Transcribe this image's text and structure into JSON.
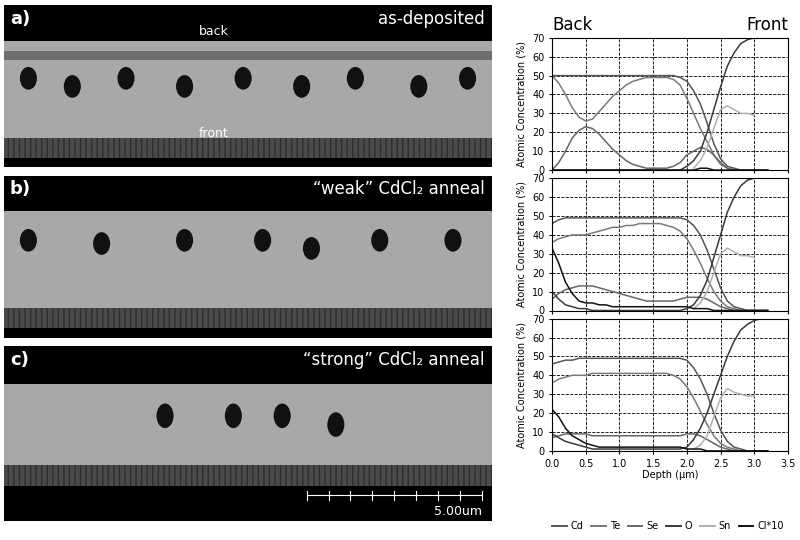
{
  "header": {
    "left": "Back",
    "right": "Front"
  },
  "images": [
    {
      "panel": "a)",
      "caption": "as-deposited",
      "top_label": "back",
      "bottom_label": "front"
    },
    {
      "panel": "b)",
      "caption": "“weak” CdCl₂ anneal"
    },
    {
      "panel": "c)",
      "caption": "“strong” CdCl₂ anneal",
      "scale_bar": "5.00um"
    }
  ],
  "chart_data": [
    {
      "type": "line",
      "ylabel": "Atomic Concentration (%)",
      "tick_labels": "y",
      "grid": true,
      "xlim": [
        0.0,
        3.5
      ],
      "xticks": [
        0.0,
        0.5,
        1.0,
        1.5,
        2.0,
        2.5,
        3.0,
        3.5
      ],
      "ylim": [
        0,
        70
      ],
      "yticks": [
        0,
        10,
        20,
        30,
        40,
        50,
        60,
        70
      ],
      "x": [
        0.0,
        0.1,
        0.2,
        0.3,
        0.4,
        0.5,
        0.6,
        0.7,
        0.8,
        0.9,
        1.0,
        1.1,
        1.2,
        1.3,
        1.4,
        1.5,
        1.6,
        1.7,
        1.8,
        1.9,
        2.0,
        2.1,
        2.2,
        2.3,
        2.4,
        2.5,
        2.6,
        2.7,
        2.8,
        2.9,
        3.0,
        3.1,
        3.2
      ],
      "series": [
        {
          "name": "Cd",
          "color": "#555555",
          "values": [
            50,
            50,
            50,
            50,
            50,
            50,
            50,
            50,
            50,
            50,
            50,
            50,
            50,
            50,
            50,
            50,
            50,
            50,
            50,
            49,
            47,
            42,
            35,
            25,
            14,
            6,
            2,
            1,
            0,
            0,
            0,
            0,
            0
          ]
        },
        {
          "name": "Te",
          "color": "#7a7a7a",
          "values": [
            50,
            46,
            40,
            33,
            28,
            26,
            27,
            31,
            35,
            39,
            42,
            45,
            47,
            48,
            49,
            49,
            49,
            49,
            48,
            45,
            38,
            30,
            22,
            15,
            8,
            3,
            1,
            0,
            0,
            0,
            0,
            0,
            0
          ]
        },
        {
          "name": "Se",
          "color": "#666666",
          "values": [
            0,
            4,
            10,
            17,
            21,
            23,
            22,
            19,
            15,
            11,
            8,
            5,
            3,
            2,
            1,
            1,
            1,
            1,
            2,
            4,
            8,
            10,
            12,
            11,
            8,
            4,
            1,
            0,
            0,
            0,
            0,
            0,
            0
          ]
        },
        {
          "name": "O",
          "color": "#3a3a3a",
          "values": [
            0,
            0,
            0,
            0,
            0,
            0,
            0,
            0,
            0,
            0,
            0,
            0,
            0,
            0,
            0,
            0,
            0,
            0,
            0,
            0,
            2,
            5,
            10,
            20,
            32,
            44,
            55,
            62,
            67,
            69,
            70,
            70,
            null
          ]
        },
        {
          "name": "Sn",
          "color": "#b0b0b0",
          "values": [
            null,
            null,
            null,
            null,
            null,
            null,
            null,
            null,
            null,
            null,
            null,
            null,
            null,
            null,
            null,
            null,
            null,
            null,
            null,
            null,
            null,
            1,
            5,
            12,
            22,
            32,
            34,
            32,
            30,
            30,
            29,
            null,
            null
          ]
        },
        {
          "name": "Cl*10",
          "color": "#111111",
          "values": [
            0,
            0,
            0,
            0,
            0,
            0,
            0,
            0,
            0,
            0,
            0,
            0,
            0,
            0,
            0,
            0,
            0,
            0,
            0,
            0,
            0,
            0,
            1,
            1,
            0,
            0,
            0,
            0,
            0,
            0,
            0,
            0,
            0
          ]
        }
      ]
    },
    {
      "type": "line",
      "ylabel": "Atomic Concentration (%)",
      "tick_labels": "y",
      "grid": true,
      "xlim": [
        0.0,
        3.5
      ],
      "xticks": [
        0.0,
        0.5,
        1.0,
        1.5,
        2.0,
        2.5,
        3.0,
        3.5
      ],
      "ylim": [
        0,
        70
      ],
      "yticks": [
        0,
        10,
        20,
        30,
        40,
        50,
        60,
        70
      ],
      "x": [
        0.0,
        0.1,
        0.2,
        0.3,
        0.4,
        0.5,
        0.6,
        0.7,
        0.8,
        0.9,
        1.0,
        1.1,
        1.2,
        1.3,
        1.4,
        1.5,
        1.6,
        1.7,
        1.8,
        1.9,
        2.0,
        2.1,
        2.2,
        2.3,
        2.4,
        2.5,
        2.6,
        2.7,
        2.8,
        2.9,
        3.0,
        3.1,
        3.2
      ],
      "series": [
        {
          "name": "Cd",
          "color": "#555555",
          "values": [
            46,
            48,
            49,
            49,
            49,
            49,
            49,
            49,
            49,
            49,
            49,
            49,
            49,
            49,
            49,
            49,
            49,
            49,
            49,
            49,
            48,
            45,
            40,
            32,
            22,
            12,
            5,
            2,
            1,
            0,
            0,
            0,
            0
          ]
        },
        {
          "name": "Te",
          "color": "#7a7a7a",
          "values": [
            36,
            38,
            39,
            40,
            40,
            40,
            41,
            42,
            43,
            44,
            44,
            45,
            45,
            46,
            46,
            46,
            46,
            45,
            44,
            42,
            38,
            32,
            25,
            17,
            10,
            5,
            2,
            1,
            0,
            0,
            0,
            0,
            0
          ]
        },
        {
          "name": "Se",
          "color": "#666666",
          "values": [
            6,
            9,
            11,
            12,
            13,
            13,
            13,
            12,
            11,
            10,
            9,
            8,
            7,
            6,
            5,
            5,
            5,
            5,
            5,
            6,
            7,
            7,
            7,
            6,
            4,
            2,
            1,
            0,
            0,
            0,
            0,
            0,
            0
          ]
        },
        {
          "name": "O",
          "color": "#3a3a3a",
          "values": [
            10,
            6,
            3,
            2,
            1,
            1,
            0,
            0,
            0,
            0,
            0,
            0,
            0,
            0,
            0,
            0,
            0,
            0,
            0,
            0,
            1,
            3,
            8,
            16,
            28,
            40,
            52,
            60,
            66,
            69,
            70,
            70,
            null
          ]
        },
        {
          "name": "Sn",
          "color": "#b0b0b0",
          "values": [
            null,
            null,
            null,
            null,
            null,
            null,
            null,
            null,
            null,
            null,
            null,
            null,
            null,
            null,
            null,
            null,
            null,
            null,
            null,
            null,
            null,
            1,
            4,
            10,
            20,
            30,
            33,
            31,
            29,
            29,
            28,
            null,
            null
          ]
        },
        {
          "name": "Cl*10",
          "color": "#111111",
          "values": [
            33,
            25,
            15,
            9,
            5,
            4,
            4,
            3,
            3,
            2,
            2,
            2,
            2,
            2,
            2,
            2,
            2,
            2,
            2,
            2,
            2,
            1,
            1,
            1,
            0,
            0,
            0,
            0,
            0,
            0,
            0,
            0,
            0
          ]
        }
      ]
    },
    {
      "type": "line",
      "ylabel": "Atomic Concentration (%)",
      "xlabel": "Depth (µm)",
      "tick_labels": true,
      "grid": true,
      "legend": "lower center",
      "xlim": [
        0.0,
        3.5
      ],
      "xticks": [
        0.0,
        0.5,
        1.0,
        1.5,
        2.0,
        2.5,
        3.0,
        3.5
      ],
      "ylim": [
        0,
        70
      ],
      "yticks": [
        0,
        10,
        20,
        30,
        40,
        50,
        60,
        70
      ],
      "x": [
        0.0,
        0.1,
        0.2,
        0.3,
        0.4,
        0.5,
        0.6,
        0.7,
        0.8,
        0.9,
        1.0,
        1.1,
        1.2,
        1.3,
        1.4,
        1.5,
        1.6,
        1.7,
        1.8,
        1.9,
        2.0,
        2.1,
        2.2,
        2.3,
        2.4,
        2.5,
        2.6,
        2.7,
        2.8,
        2.9,
        3.0,
        3.1,
        3.2
      ],
      "series": [
        {
          "name": "Cd",
          "color": "#555555",
          "values": [
            46,
            47,
            48,
            48,
            49,
            49,
            49,
            49,
            49,
            49,
            49,
            49,
            49,
            49,
            49,
            49,
            49,
            49,
            49,
            49,
            48,
            44,
            38,
            30,
            20,
            11,
            5,
            2,
            1,
            0,
            0,
            0,
            0
          ]
        },
        {
          "name": "Te",
          "color": "#7a7a7a",
          "values": [
            36,
            38,
            39,
            40,
            40,
            40,
            41,
            41,
            41,
            41,
            41,
            41,
            41,
            41,
            41,
            41,
            41,
            41,
            40,
            38,
            34,
            28,
            21,
            14,
            8,
            4,
            2,
            1,
            0,
            0,
            0,
            0,
            0
          ]
        },
        {
          "name": "Se",
          "color": "#666666",
          "values": [
            7,
            8,
            9,
            9,
            9,
            9,
            8,
            8,
            8,
            8,
            8,
            8,
            8,
            8,
            8,
            8,
            8,
            8,
            8,
            8,
            9,
            9,
            8,
            6,
            4,
            2,
            1,
            0,
            0,
            0,
            0,
            0,
            0
          ]
        },
        {
          "name": "O",
          "color": "#3a3a3a",
          "values": [
            9,
            7,
            5,
            4,
            3,
            2,
            1,
            1,
            1,
            1,
            1,
            1,
            1,
            1,
            1,
            1,
            1,
            1,
            1,
            1,
            2,
            6,
            12,
            20,
            30,
            40,
            50,
            58,
            64,
            67,
            69,
            70,
            null
          ]
        },
        {
          "name": "Sn",
          "color": "#b0b0b0",
          "values": [
            null,
            null,
            null,
            null,
            null,
            null,
            null,
            null,
            null,
            null,
            null,
            null,
            null,
            null,
            null,
            null,
            null,
            null,
            null,
            null,
            null,
            1,
            3,
            8,
            18,
            28,
            33,
            31,
            30,
            29,
            29,
            null,
            null
          ]
        },
        {
          "name": "Cl*10",
          "color": "#111111",
          "values": [
            22,
            18,
            12,
            8,
            6,
            4,
            3,
            2,
            2,
            2,
            2,
            2,
            2,
            2,
            2,
            2,
            2,
            2,
            2,
            2,
            1,
            1,
            1,
            0,
            0,
            0,
            0,
            0,
            0,
            0,
            0,
            0,
            0
          ]
        }
      ]
    }
  ]
}
